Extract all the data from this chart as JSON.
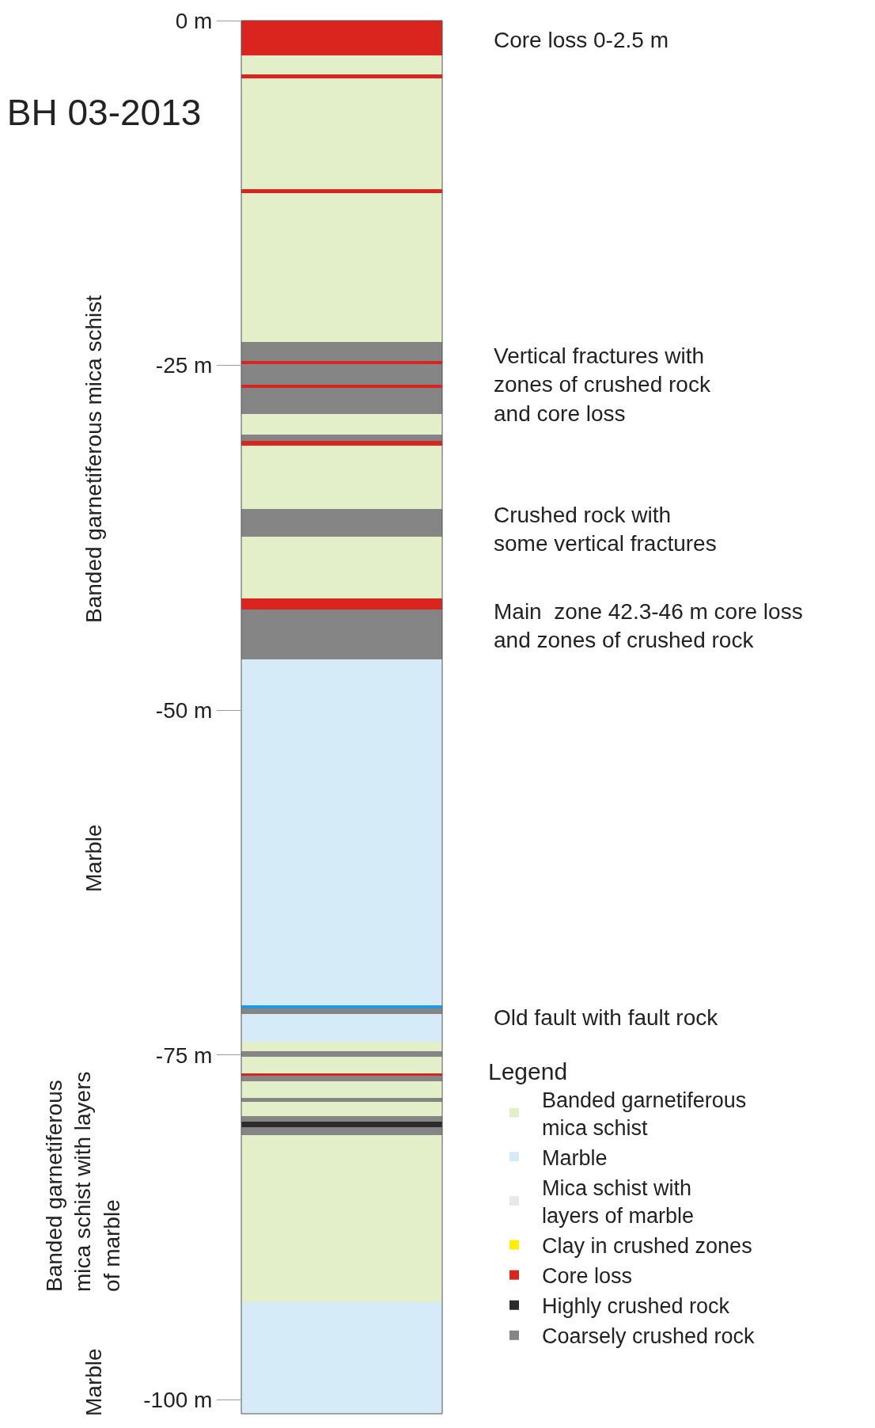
{
  "chart_data": {
    "type": "bar",
    "title": "BH 03-2013",
    "stacked": true,
    "categories": [
      null
    ],
    "ylim": [
      -101,
      0
    ],
    "yticks": [
      {
        "value": 0,
        "label": "0 m"
      },
      {
        "value": -25,
        "label": "-25 m"
      },
      {
        "value": -50,
        "label": "-50 m"
      },
      {
        "value": -75,
        "label": "-75 m"
      },
      {
        "value": -100,
        "label": "-100 m"
      }
    ],
    "legend": "bottom right",
    "legend_title": "Legend",
    "series": [
      {
        "name": "Banded garnetiferous mica schist",
        "color": "#e2efc9",
        "values": [
          null
        ]
      },
      {
        "name": "Marble",
        "color": "#d6ebf8",
        "values": [
          null
        ]
      },
      {
        "name": "Mica schist with layers of marble",
        "color": "#e8e8e8",
        "values": [
          null
        ]
      },
      {
        "name": "Clay in crushed zones",
        "color": "#ffee00",
        "values": [
          null
        ]
      },
      {
        "name": "Core loss",
        "color": "#d9251d",
        "values": [
          null
        ]
      },
      {
        "name": "Highly crushed rock",
        "color": "#2d2b2a",
        "values": [
          null
        ]
      },
      {
        "name": "Coarsely crushed rock",
        "color": "#858585",
        "values": [
          null
        ]
      },
      {
        "color": "#d9251d",
        "values": [
          -2.5
        ]
      },
      {
        "color": "#e2efc9",
        "values": [
          -1.4
        ]
      },
      {
        "color": "#d9251d",
        "values": [
          -0.3
        ]
      },
      {
        "color": "#e2efc9",
        "values": [
          -8.0
        ]
      },
      {
        "color": "#d9251d",
        "values": [
          -0.3
        ]
      },
      {
        "color": "#e2efc9",
        "values": [
          -10.8
        ]
      },
      {
        "color": "#858585",
        "values": [
          -1.4
        ]
      },
      {
        "color": "#d9251d",
        "values": [
          -0.2
        ]
      },
      {
        "color": "#858585",
        "values": [
          -1.5
        ]
      },
      {
        "color": "#d9251d",
        "values": [
          -0.2
        ]
      },
      {
        "color": "#858585",
        "values": [
          -1.9
        ]
      },
      {
        "color": "#e2efc9",
        "values": [
          -1.5
        ]
      },
      {
        "color": "#858585",
        "values": [
          -0.5
        ]
      },
      {
        "color": "#d9251d",
        "values": [
          -0.3
        ]
      },
      {
        "color": "#e2efc9",
        "values": [
          -4.6
        ]
      },
      {
        "color": "#858585",
        "values": [
          -2.0
        ]
      },
      {
        "color": "#e2efc9",
        "values": [
          -4.5
        ]
      },
      {
        "color": "#d9251d",
        "values": [
          -0.8
        ]
      },
      {
        "color": "#858585",
        "values": [
          -3.6
        ]
      },
      {
        "color": "#d6ebf8",
        "values": [
          -25.1
        ]
      },
      {
        "color": "#1e9be0",
        "values": [
          -0.2
        ]
      },
      {
        "color": "#858585",
        "values": [
          -0.4
        ]
      },
      {
        "color": "#d6ebf8",
        "values": [
          -2.0
        ]
      },
      {
        "color": "#e2efc9",
        "values": [
          -0.7
        ]
      },
      {
        "color": "#858585",
        "values": [
          -0.4
        ]
      },
      {
        "color": "#e2efc9",
        "values": [
          -1.2
        ]
      },
      {
        "color": "#d9251d",
        "values": [
          -0.2
        ]
      },
      {
        "color": "#858585",
        "values": [
          -0.4
        ]
      },
      {
        "color": "#e2efc9",
        "values": [
          -1.2
        ]
      },
      {
        "color": "#858585",
        "values": [
          -0.3
        ]
      },
      {
        "color": "#e2efc9",
        "values": [
          -1.0
        ]
      },
      {
        "color": "#858585",
        "values": [
          -0.4
        ]
      },
      {
        "color": "#2d2b2a",
        "values": [
          -0.4
        ]
      },
      {
        "color": "#858585",
        "values": [
          -0.6
        ]
      },
      {
        "color": "#e2efc9",
        "values": [
          -12.1
        ]
      },
      {
        "color": "#d6ebf8",
        "values": [
          -8.1
        ]
      }
    ],
    "annotations": [
      "Core loss 0-2.5 m",
      "Vertical fractures with\nzones of crushed rock\nand core loss",
      "Crushed rock with\nsome vertical fractures",
      "Main  zone 42.3-46 m core loss\nand zones of crushed rock",
      "Old fault with fault rock",
      "Banded garnetiferous mica schist",
      "Marble",
      "Banded garnetiferous\nmica schist with layers\nof marble",
      "Marble"
    ]
  }
}
